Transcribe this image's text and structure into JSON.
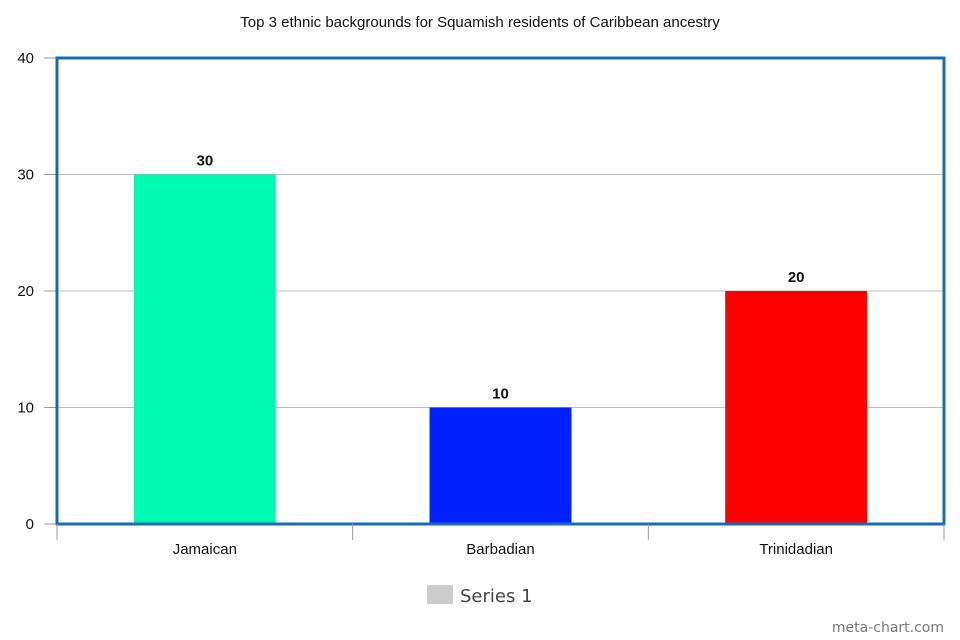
{
  "chart_data": {
    "type": "bar",
    "title": "Top 3 ethnic backgrounds for Squamish residents of Caribbean ancestry",
    "xlabel": "",
    "ylabel": "",
    "categories": [
      "Jamaican",
      "Barbadian",
      "Trinidadian"
    ],
    "series": [
      {
        "name": "Series 1",
        "values": [
          30,
          10,
          20
        ],
        "colors": [
          "#00fbb0",
          "#0022ff",
          "#ff0000"
        ]
      }
    ],
    "ylim": [
      0,
      40
    ],
    "yticks": [
      "0",
      "10",
      "20",
      "30",
      "40"
    ],
    "data_labels": [
      "30",
      "10",
      "20"
    ],
    "grid": true,
    "legend": {
      "position": "bottom-center",
      "entries": [
        "Series 1"
      ],
      "swatch_color": "#cccccc"
    },
    "plot_border_color": "#1a6bb5",
    "gridline_color": "#bbbbbb"
  },
  "watermark": "meta-chart.com"
}
